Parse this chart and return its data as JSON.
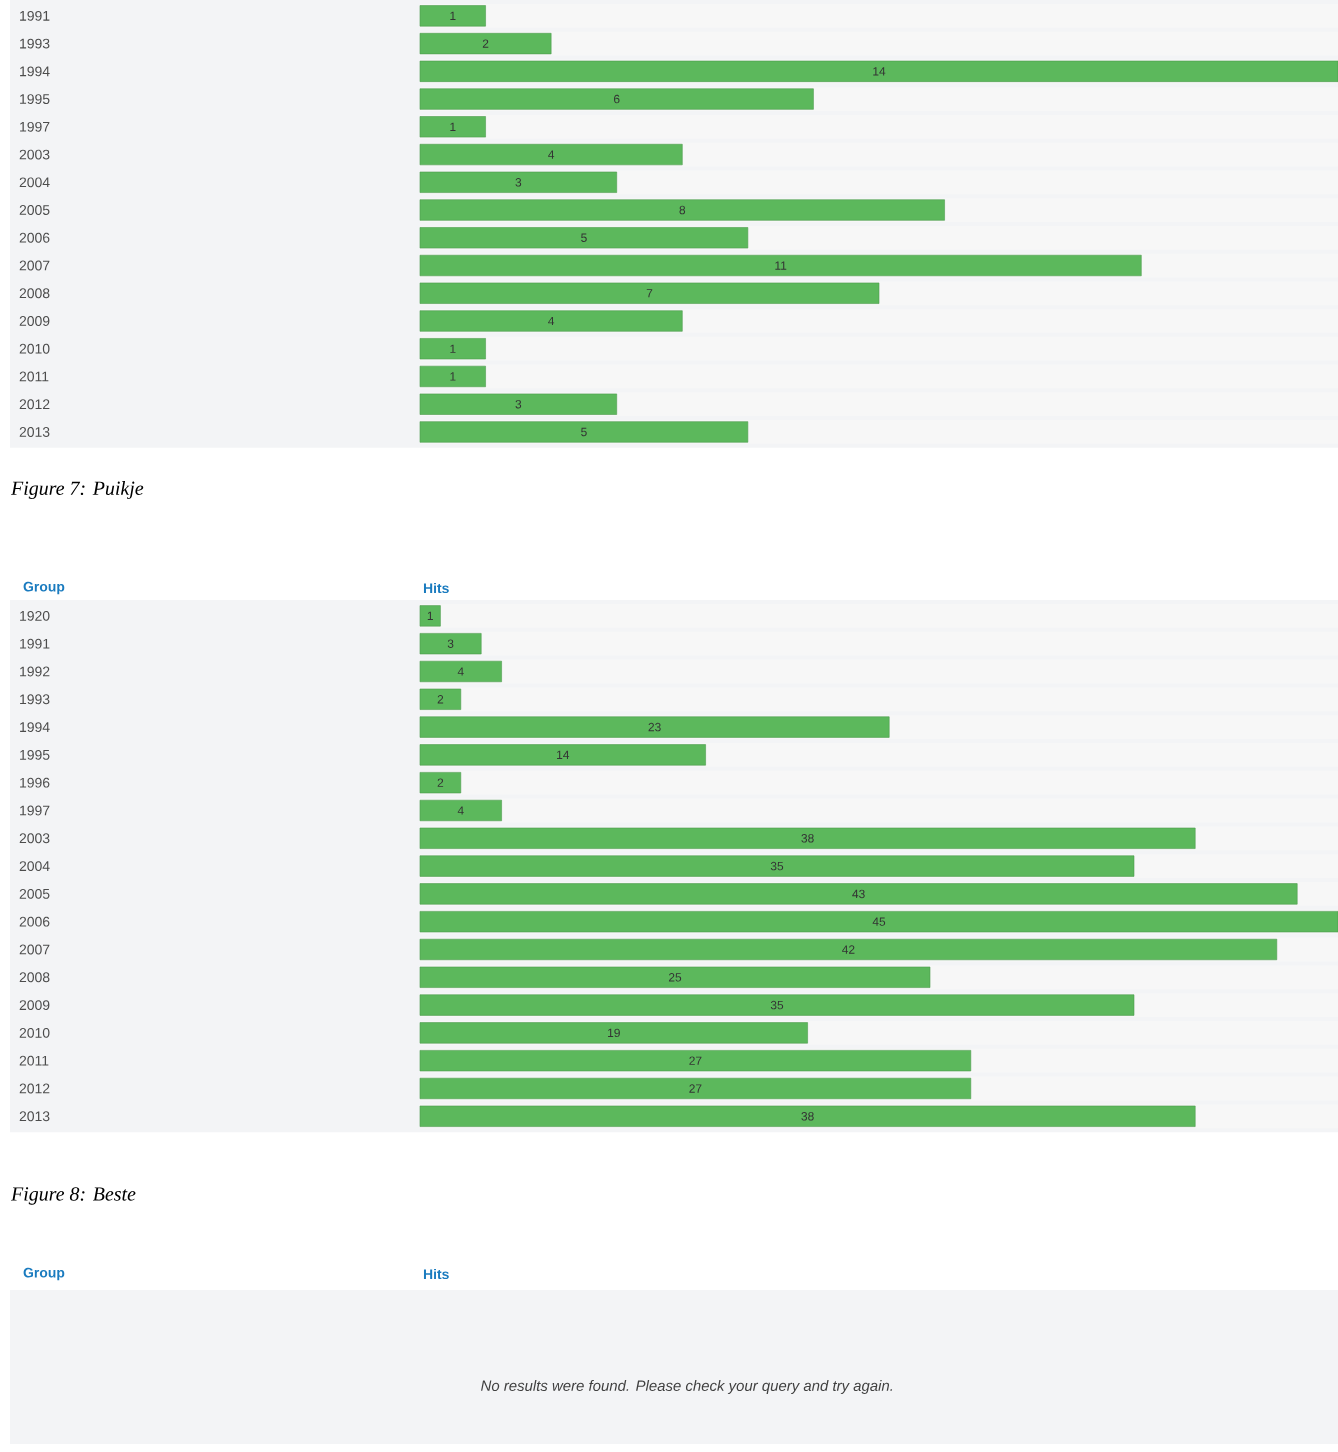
{
  "chart_data": [
    {
      "type": "bar",
      "orientation": "horizontal",
      "title": "Figure 7: Puikje",
      "data_labels": true,
      "color": "#5cb85c",
      "categories": [
        "1991",
        "1993",
        "1994",
        "1995",
        "1997",
        "2003",
        "2004",
        "2005",
        "2006",
        "2007",
        "2008",
        "2009",
        "2010",
        "2011",
        "2012",
        "2013"
      ],
      "values": [
        1,
        2,
        14,
        6,
        1,
        4,
        3,
        8,
        5,
        11,
        7,
        4,
        1,
        1,
        3,
        5
      ]
    },
    {
      "type": "bar",
      "orientation": "horizontal",
      "title": "Figure 8: Beste",
      "xlabel": "Hits",
      "ylabel": "Group",
      "data_labels": true,
      "color": "#5cb85c",
      "categories": [
        "1920",
        "1991",
        "1992",
        "1993",
        "1994",
        "1995",
        "1996",
        "1997",
        "2003",
        "2004",
        "2005",
        "2006",
        "2007",
        "2008",
        "2009",
        "2010",
        "2011",
        "2012",
        "2013"
      ],
      "values": [
        1,
        3,
        4,
        2,
        23,
        14,
        2,
        4,
        38,
        35,
        43,
        45,
        42,
        25,
        35,
        19,
        27,
        27,
        38
      ]
    },
    {
      "type": "other",
      "xlabel": "Hits",
      "ylabel": "Group",
      "annotations": [
        "No results were found. Please check your query and try again."
      ]
    }
  ]
}
